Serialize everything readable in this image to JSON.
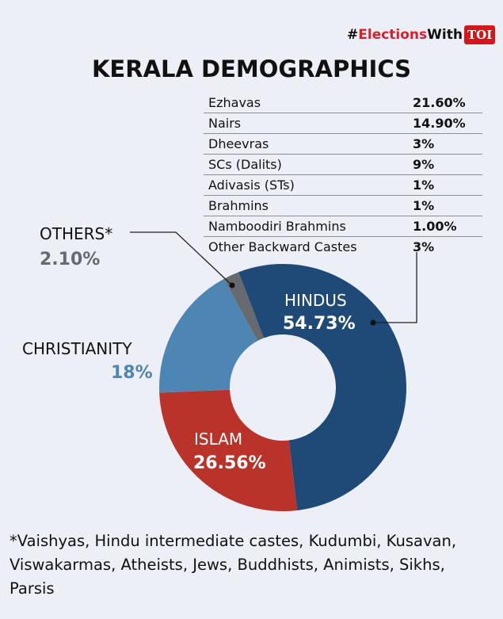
{
  "badge": {
    "hash": "#",
    "elections": "Elections",
    "with": "With",
    "toi": "TOI"
  },
  "title": "KERALA DEMOGRAPHICS",
  "castes": [
    {
      "name": "Ezhavas",
      "value": "21.60%"
    },
    {
      "name": "Nairs",
      "value": "14.90%"
    },
    {
      "name": "Dheevras",
      "value": "3%"
    },
    {
      "name": "SCs (Dalits)",
      "value": "9%"
    },
    {
      "name": "Adivasis (STs)",
      "value": "1%"
    },
    {
      "name": "Brahmins",
      "value": "1%"
    },
    {
      "name": "Namboodiri Brahmins",
      "value": "1.00%"
    },
    {
      "name": "Other Backward Castes",
      "value": "3%"
    }
  ],
  "chart_data": {
    "type": "pie",
    "variant": "donut",
    "categories": [
      "HINDUS",
      "ISLAM",
      "CHRISTIANITY",
      "OTHERS*"
    ],
    "values": [
      54.73,
      26.56,
      18,
      2.1
    ],
    "labels": [
      "54.73%",
      "26.56%",
      "18%",
      "2.10%"
    ],
    "colors": [
      "#1f4a78",
      "#b9332b",
      "#4e86b3",
      "#666a6e"
    ]
  },
  "footnote": "*Vaishyas, Hindu intermediate castes, Kudumbi, Kusavan, Viswakarmas, Atheists, Jews, Buddhists, Animists, Sikhs, Parsis"
}
